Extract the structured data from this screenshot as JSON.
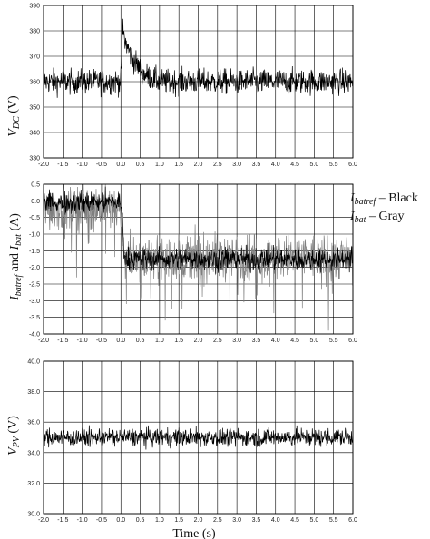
{
  "figure": {
    "xlabel": "Time (s)"
  },
  "chart_data": [
    {
      "type": "line",
      "ylabel_main": "V",
      "ylabel_sub": "DC",
      "ylabel_unit": " (V)",
      "xlim": [
        -2.0,
        6.0
      ],
      "ylim": [
        330,
        390
      ],
      "xticks": [
        "-2.0",
        "-1.5",
        "-1.0",
        "-0.5",
        "0.0",
        "0.5",
        "1.0",
        "1.5",
        "2.0",
        "2.5",
        "3.0",
        "3.5",
        "4.0",
        "4.5",
        "5.0",
        "5.5",
        "6.0"
      ],
      "yticks": [
        "330",
        "340",
        "350",
        "360",
        "370",
        "380",
        "390"
      ],
      "series": [
        {
          "color": "#000000",
          "x": [
            -2.0,
            0.0,
            0.05,
            0.1,
            0.3,
            0.6,
            1.0,
            6.0
          ],
          "y": [
            360,
            360,
            381,
            376,
            369,
            363,
            360,
            360
          ],
          "noise": 5
        }
      ]
    },
    {
      "type": "line",
      "xlim": [
        -2.0,
        6.0
      ],
      "ylim": [
        -4.0,
        0.5
      ],
      "xticks": [
        "-2.0",
        "-1.5",
        "-1.0",
        "-0.5",
        "0.0",
        "0.5",
        "1.0",
        "1.5",
        "2.0",
        "2.5",
        "3.0",
        "3.5",
        "4.0",
        "4.5",
        "5.0",
        "5.5",
        "6.0"
      ],
      "yticks": [
        "-4.0",
        "-3.5",
        "-3.0",
        "-2.5",
        "-2.0",
        "-1.5",
        "-1.0",
        "-0.5",
        "0.0",
        "0.5"
      ],
      "legend": [
        {
          "main": "I",
          "sub": "batref",
          "rest": " – Black"
        },
        {
          "main": "I",
          "sub": "bat",
          "rest": " – Gray"
        }
      ],
      "series": [
        {
          "color": "#7f7f7f",
          "x": [
            -2.0,
            0.0,
            0.12,
            6.0
          ],
          "y": [
            -0.2,
            -0.2,
            -1.7,
            -1.7
          ],
          "noise": 0.7
        },
        {
          "color": "#000000",
          "x": [
            -2.0,
            0.0,
            0.1,
            6.0
          ],
          "y": [
            -0.05,
            -0.05,
            -1.75,
            -1.75
          ],
          "noise": 0.35
        }
      ]
    },
    {
      "type": "line",
      "ylabel_main": "V",
      "ylabel_sub": "PV",
      "ylabel_unit": " (V)",
      "xlim": [
        -2.0,
        6.0
      ],
      "ylim": [
        30.0,
        40.0
      ],
      "xticks": [
        "-2.0",
        "-1.5",
        "-1.0",
        "-0.5",
        "0.0",
        "0.5",
        "1.0",
        "1.5",
        "2.0",
        "2.5",
        "3.0",
        "3.5",
        "4.0",
        "4.5",
        "5.0",
        "5.5",
        "6.0"
      ],
      "yticks": [
        "30.0",
        "32.0",
        "34.0",
        "36.0",
        "38.0",
        "40.0"
      ],
      "series": [
        {
          "color": "#000000",
          "x": [
            -2.0,
            6.0
          ],
          "y": [
            35.0,
            35.0
          ],
          "noise": 0.6
        }
      ]
    }
  ]
}
